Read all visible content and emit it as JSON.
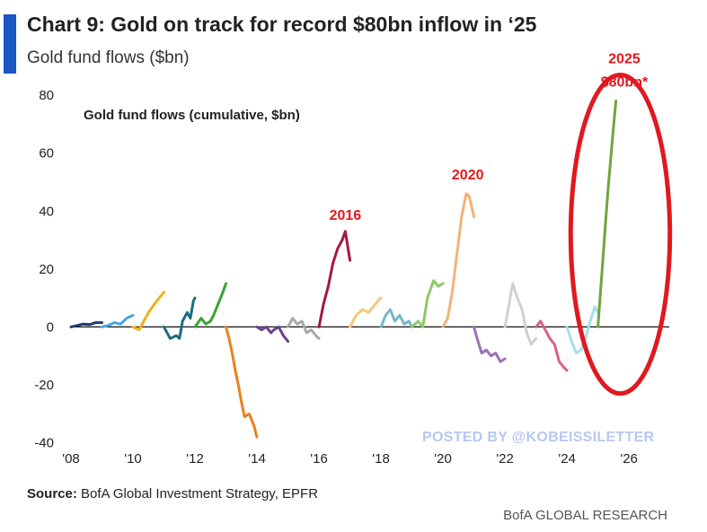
{
  "header": {
    "title": "Chart 9: Gold on track for record $80bn inflow in ‘25",
    "subtitle": "Gold fund flows ($bn)",
    "accent_color": "#1a56c4"
  },
  "watermark": "POSTED BY @KOBEISSILETTER",
  "footer": {
    "source_label": "Source:",
    "source_text": " BofA Global Investment Strategy, EPFR",
    "brand": "BofA GLOBAL RESEARCH"
  },
  "chart_data": {
    "type": "line",
    "title": "Gold fund flows (cumulative, $bn)",
    "xlabel": "",
    "ylabel": "Gold fund flows (cumulative, $bn)",
    "xlim": [
      2008,
      2027.3
    ],
    "ylim": [
      -42,
      85
    ],
    "x_ticks": [
      2008,
      2010,
      2012,
      2014,
      2016,
      2018,
      2020,
      2022,
      2024,
      2026
    ],
    "x_tick_labels": [
      "'08",
      "'10",
      "'12",
      "'14",
      "'16",
      "'18",
      "'20",
      "'22",
      "'24",
      "'26"
    ],
    "y_ticks": [
      -40,
      -20,
      0,
      20,
      40,
      60,
      80
    ],
    "y_tick_labels": [
      "-40",
      "-20",
      "0",
      "20",
      "40",
      "60",
      "80"
    ],
    "series": [
      {
        "name": "2008",
        "color": "#1f3b73",
        "points": [
          [
            2008.0,
            0
          ],
          [
            2008.2,
            0.5
          ],
          [
            2008.4,
            1
          ],
          [
            2008.6,
            0.8
          ],
          [
            2008.8,
            1.5
          ],
          [
            2009.0,
            1.5
          ]
        ]
      },
      {
        "name": "2009",
        "color": "#4aa3df",
        "points": [
          [
            2009.0,
            0
          ],
          [
            2009.2,
            0.5
          ],
          [
            2009.4,
            1.5
          ],
          [
            2009.6,
            1
          ],
          [
            2009.8,
            3
          ],
          [
            2010.0,
            4
          ]
        ]
      },
      {
        "name": "2010",
        "color": "#f2b01e",
        "points": [
          [
            2010.0,
            0
          ],
          [
            2010.2,
            -1
          ],
          [
            2010.35,
            2
          ],
          [
            2010.5,
            5
          ],
          [
            2010.7,
            8
          ],
          [
            2010.85,
            10
          ],
          [
            2011.0,
            12
          ]
        ]
      },
      {
        "name": "2011",
        "color": "#1b6e82",
        "points": [
          [
            2011.0,
            0
          ],
          [
            2011.2,
            -4
          ],
          [
            2011.4,
            -3
          ],
          [
            2011.5,
            -4
          ],
          [
            2011.6,
            2
          ],
          [
            2011.75,
            5
          ],
          [
            2011.85,
            3
          ],
          [
            2011.95,
            9
          ],
          [
            2012.0,
            10
          ]
        ]
      },
      {
        "name": "2012",
        "color": "#3aa535",
        "points": [
          [
            2012.0,
            0
          ],
          [
            2012.2,
            3
          ],
          [
            2012.35,
            1
          ],
          [
            2012.5,
            2
          ],
          [
            2012.6,
            4
          ],
          [
            2012.75,
            8
          ],
          [
            2012.9,
            12
          ],
          [
            2013.0,
            15
          ]
        ]
      },
      {
        "name": "2013",
        "color": "#e8821e",
        "points": [
          [
            2013.0,
            0
          ],
          [
            2013.1,
            -4
          ],
          [
            2013.2,
            -9
          ],
          [
            2013.3,
            -15
          ],
          [
            2013.4,
            -20
          ],
          [
            2013.5,
            -26
          ],
          [
            2013.6,
            -31
          ],
          [
            2013.75,
            -30
          ],
          [
            2013.9,
            -34
          ],
          [
            2014.0,
            -38
          ]
        ]
      },
      {
        "name": "2014",
        "color": "#6b3f8e",
        "points": [
          [
            2014.0,
            0
          ],
          [
            2014.15,
            -1
          ],
          [
            2014.3,
            0
          ],
          [
            2014.45,
            -2
          ],
          [
            2014.55,
            -1
          ],
          [
            2014.7,
            0
          ],
          [
            2014.85,
            -3
          ],
          [
            2015.0,
            -5
          ]
        ]
      },
      {
        "name": "2015",
        "color": "#a8a8a8",
        "points": [
          [
            2015.0,
            0
          ],
          [
            2015.15,
            3
          ],
          [
            2015.3,
            1
          ],
          [
            2015.45,
            2
          ],
          [
            2015.6,
            -2
          ],
          [
            2015.75,
            -1
          ],
          [
            2015.9,
            -3
          ],
          [
            2016.0,
            -4
          ]
        ]
      },
      {
        "name": "2016",
        "color": "#a3193f",
        "points": [
          [
            2016.0,
            0
          ],
          [
            2016.15,
            8
          ],
          [
            2016.3,
            14
          ],
          [
            2016.45,
            22
          ],
          [
            2016.6,
            27
          ],
          [
            2016.75,
            30
          ],
          [
            2016.85,
            33
          ],
          [
            2017.0,
            23
          ]
        ]
      },
      {
        "name": "2017",
        "color": "#f5c87a",
        "points": [
          [
            2017.0,
            0
          ],
          [
            2017.2,
            4
          ],
          [
            2017.4,
            6
          ],
          [
            2017.6,
            5
          ],
          [
            2017.75,
            7
          ],
          [
            2017.9,
            9
          ],
          [
            2018.0,
            10
          ]
        ]
      },
      {
        "name": "2018",
        "color": "#74b8c8",
        "points": [
          [
            2018.0,
            0
          ],
          [
            2018.15,
            4
          ],
          [
            2018.3,
            6
          ],
          [
            2018.45,
            2
          ],
          [
            2018.6,
            4
          ],
          [
            2018.75,
            1
          ],
          [
            2018.9,
            2
          ],
          [
            2019.0,
            0
          ]
        ]
      },
      {
        "name": "2019",
        "color": "#8cc96a",
        "points": [
          [
            2019.0,
            0
          ],
          [
            2019.2,
            2
          ],
          [
            2019.35,
            0
          ],
          [
            2019.5,
            10
          ],
          [
            2019.7,
            16
          ],
          [
            2019.85,
            14
          ],
          [
            2020.0,
            15
          ]
        ]
      },
      {
        "name": "2020",
        "color": "#f2b27a",
        "points": [
          [
            2020.0,
            0
          ],
          [
            2020.15,
            3
          ],
          [
            2020.3,
            12
          ],
          [
            2020.45,
            25
          ],
          [
            2020.6,
            38
          ],
          [
            2020.75,
            46
          ],
          [
            2020.85,
            45
          ],
          [
            2021.0,
            38
          ]
        ]
      },
      {
        "name": "2021",
        "color": "#9a72b6",
        "points": [
          [
            2021.0,
            0
          ],
          [
            2021.1,
            -4
          ],
          [
            2021.25,
            -9
          ],
          [
            2021.4,
            -8
          ],
          [
            2021.55,
            -10
          ],
          [
            2021.7,
            -9
          ],
          [
            2021.85,
            -12
          ],
          [
            2022.0,
            -11
          ]
        ]
      },
      {
        "name": "2022",
        "color": "#d0d0d0",
        "points": [
          [
            2022.0,
            0
          ],
          [
            2022.1,
            6
          ],
          [
            2022.25,
            15
          ],
          [
            2022.4,
            10
          ],
          [
            2022.55,
            6
          ],
          [
            2022.7,
            -2
          ],
          [
            2022.85,
            -6
          ],
          [
            2023.0,
            -4
          ]
        ]
      },
      {
        "name": "2023",
        "color": "#d9618a",
        "points": [
          [
            2023.0,
            0
          ],
          [
            2023.15,
            2
          ],
          [
            2023.3,
            -1
          ],
          [
            2023.45,
            -4
          ],
          [
            2023.6,
            -6
          ],
          [
            2023.75,
            -12
          ],
          [
            2023.9,
            -14
          ],
          [
            2024.0,
            -15
          ]
        ]
      },
      {
        "name": "2024",
        "color": "#a6e0e6",
        "points": [
          [
            2024.0,
            0
          ],
          [
            2024.15,
            -5
          ],
          [
            2024.3,
            -9
          ],
          [
            2024.45,
            -8
          ],
          [
            2024.6,
            -4
          ],
          [
            2024.75,
            2
          ],
          [
            2024.9,
            7
          ],
          [
            2025.0,
            5
          ]
        ]
      },
      {
        "name": "2025",
        "color": "#72a33e",
        "points": [
          [
            2025.0,
            0
          ],
          [
            2025.08,
            12
          ],
          [
            2025.17,
            25
          ],
          [
            2025.25,
            37
          ],
          [
            2025.33,
            48
          ],
          [
            2025.42,
            59
          ],
          [
            2025.5,
            69
          ],
          [
            2025.58,
            78
          ]
        ]
      }
    ],
    "annotations": [
      {
        "text": "2016",
        "x": 2016.85,
        "y": 37,
        "color": "#e0191e"
      },
      {
        "text": "2020",
        "x": 2020.8,
        "y": 51,
        "color": "#e0191e"
      },
      {
        "text": "2025",
        "x": 2025.85,
        "y": 91,
        "color": "#e0191e"
      },
      {
        "text": "$80bn*",
        "x": 2025.85,
        "y": 83,
        "color": "#e0191e"
      }
    ],
    "highlight": {
      "label": "2025 record highlight",
      "color": "#e0191e",
      "cx": 2025.72,
      "cy": 32,
      "rx": 1.6,
      "ry": 55
    },
    "grid": false,
    "legend": "none"
  }
}
